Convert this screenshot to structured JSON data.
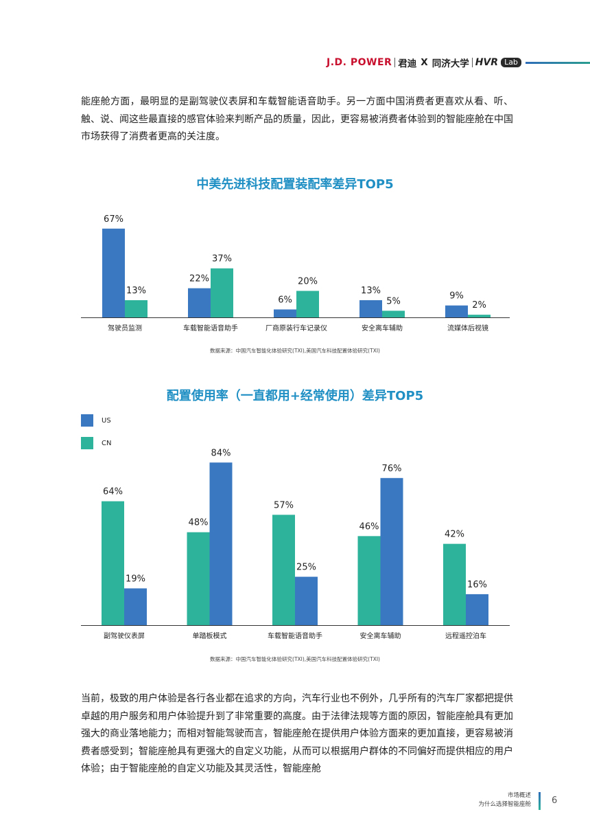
{
  "header": {
    "brand_jdp": "J.D. POWER",
    "brand_cn": "君迪",
    "brand_x": "X",
    "brand_tongji": "同济大学",
    "brand_hvr": "HVR",
    "brand_lab": "Lab"
  },
  "paragraphs": {
    "intro": "能座舱方面，最明显的是副驾驶仪表屏和车载智能语音助手。另一方面中国消费者更喜欢从看、听、触、说、闻这些最直接的感官体验来判断产品的质量，因此，更容易被消费者体验到的智能座舱在中国市场获得了消费者更高的关注度。",
    "body": "当前，极致的用户体验是各行各业都在追求的方向，汽车行业也不例外，几乎所有的汽车厂家都把提供卓越的用户服务和用户体验提升到了非常重要的高度。由于法律法规等方面的原因，智能座舱具有更加强大的商业落地能力；而相对智能驾驶而言，智能座舱在提供用户体验方面来的更加直接，更容易被消费者感受到；智能座舱具有更强大的自定义功能，从而可以根据用户群体的不同偏好而提供相应的用户体验；由于智能座舱的自定义功能及其灵活性，智能座舱"
  },
  "colors": {
    "us": "#3a78c2",
    "cn": "#2db39b",
    "title": "#1f8fc4"
  },
  "chart_data": [
    {
      "type": "bar",
      "title": "中美先进科技配置装配率差异TOP5",
      "categories": [
        "驾驶员监测",
        "车载智能语音助手",
        "厂商原装行车记录仪",
        "安全离车辅助",
        "流媒体后视镜"
      ],
      "series": [
        {
          "name": "US",
          "values": [
            67,
            22,
            6,
            13,
            9
          ]
        },
        {
          "name": "CN",
          "values": [
            13,
            37,
            20,
            5,
            2
          ]
        }
      ],
      "value_labels": [
        [
          "67%",
          "22%",
          "6%",
          "13%",
          "9%"
        ],
        [
          "13%",
          "37%",
          "20%",
          "5%",
          "2%"
        ]
      ],
      "ylim": [
        0,
        70
      ],
      "source": "数据来源：中国汽车智能化体验研究(TXI),美国汽车科技配置体验研究(TXI)"
    },
    {
      "type": "bar",
      "title": "配置使用率（一直都用+经常使用）差异TOP5",
      "legend": [
        "US",
        "CN"
      ],
      "legend_position": "top-left",
      "categories": [
        "副驾驶仪表屏",
        "单踏板模式",
        "车载智能语音助手",
        "安全离车辅助",
        "远程遥控泊车"
      ],
      "series": [
        {
          "name": "CN",
          "values": [
            64,
            48,
            57,
            46,
            42
          ]
        },
        {
          "name": "US",
          "values": [
            19,
            84,
            25,
            76,
            16
          ]
        }
      ],
      "value_labels": [
        [
          "64%",
          "48%",
          "57%",
          "46%",
          "42%"
        ],
        [
          "19%",
          "84%",
          "25%",
          "76%",
          "16%"
        ]
      ],
      "ylim": [
        0,
        88
      ],
      "source": "数据来源：中国汽车智能化体验研究(TXI),美国汽车科技配置体验研究(TXI)"
    }
  ],
  "footer": {
    "section": "市场概述",
    "subsection": "为什么选择智能座舱",
    "page": "6"
  }
}
